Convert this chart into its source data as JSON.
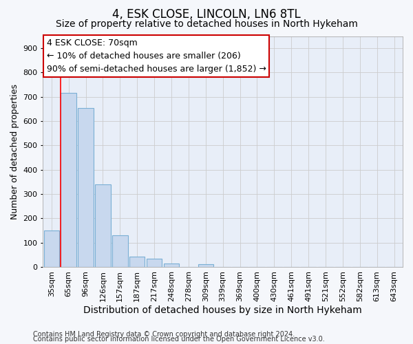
{
  "title": "4, ESK CLOSE, LINCOLN, LN6 8TL",
  "subtitle": "Size of property relative to detached houses in North Hykeham",
  "xlabel": "Distribution of detached houses by size in North Hykeham",
  "ylabel": "Number of detached properties",
  "categories": [
    "35sqm",
    "65sqm",
    "96sqm",
    "126sqm",
    "157sqm",
    "187sqm",
    "217sqm",
    "248sqm",
    "278sqm",
    "309sqm",
    "339sqm",
    "369sqm",
    "400sqm",
    "430sqm",
    "461sqm",
    "491sqm",
    "521sqm",
    "552sqm",
    "582sqm",
    "613sqm",
    "643sqm"
  ],
  "values": [
    150,
    715,
    655,
    340,
    130,
    42,
    33,
    13,
    0,
    10,
    0,
    0,
    0,
    0,
    0,
    0,
    0,
    0,
    0,
    0,
    0
  ],
  "bar_color": "#c8d8ee",
  "bar_edge_color": "#7aafd4",
  "grid_color": "#cccccc",
  "red_line_index": 1,
  "annotation_line1": "4 ESK CLOSE: 70sqm",
  "annotation_line2": "← 10% of detached houses are smaller (206)",
  "annotation_line3": "90% of semi-detached houses are larger (1,852) →",
  "annotation_box_color": "#ffffff",
  "annotation_border_color": "#cc0000",
  "ylim": [
    0,
    950
  ],
  "yticks": [
    0,
    100,
    200,
    300,
    400,
    500,
    600,
    700,
    800,
    900
  ],
  "footer_line1": "Contains HM Land Registry data © Crown copyright and database right 2024.",
  "footer_line2": "Contains public sector information licensed under the Open Government Licence v3.0.",
  "bg_color": "#f5f7fb",
  "plot_bg_color": "#e8eef8",
  "title_fontsize": 12,
  "subtitle_fontsize": 10,
  "xlabel_fontsize": 10,
  "ylabel_fontsize": 9,
  "tick_fontsize": 8,
  "footer_fontsize": 7,
  "annotation_fontsize": 9
}
